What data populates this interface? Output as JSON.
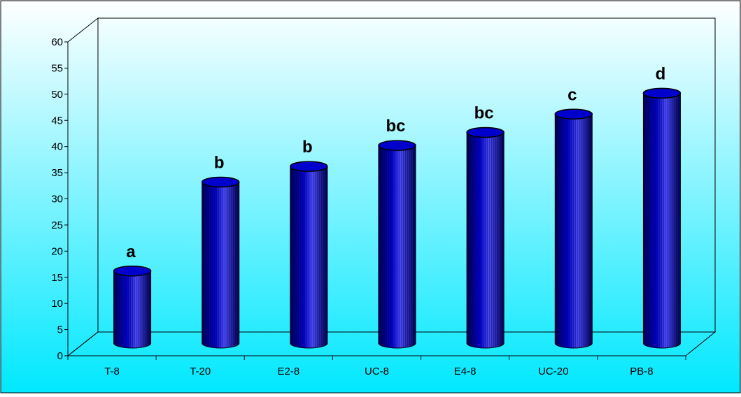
{
  "chart_data": {
    "type": "bar",
    "title": "",
    "xlabel": "",
    "ylabel": "",
    "categories": [
      "T-8",
      "T-20",
      "E2-8",
      "UC-8",
      "E4-8",
      "UC-20",
      "PB-8"
    ],
    "values": [
      15,
      32,
      35,
      39,
      41.5,
      45,
      49
    ],
    "data_labels": [
      "a",
      "b",
      "b",
      "bc",
      "bc",
      "c",
      "d"
    ],
    "ylim": [
      0,
      60
    ],
    "yticks": [
      0,
      5,
      10,
      15,
      20,
      25,
      30,
      35,
      40,
      45,
      50,
      55,
      60
    ],
    "grid": false,
    "legend": "none",
    "bar_style": "3d-cylinder",
    "colors": {
      "bar": "#0000cc",
      "bar_dark": "#000055",
      "bar_light": "#4a4aff",
      "background_top": "#ffffff",
      "background_bottom": "#00e8ff",
      "axis": "#000000",
      "frame": "#000000"
    }
  }
}
